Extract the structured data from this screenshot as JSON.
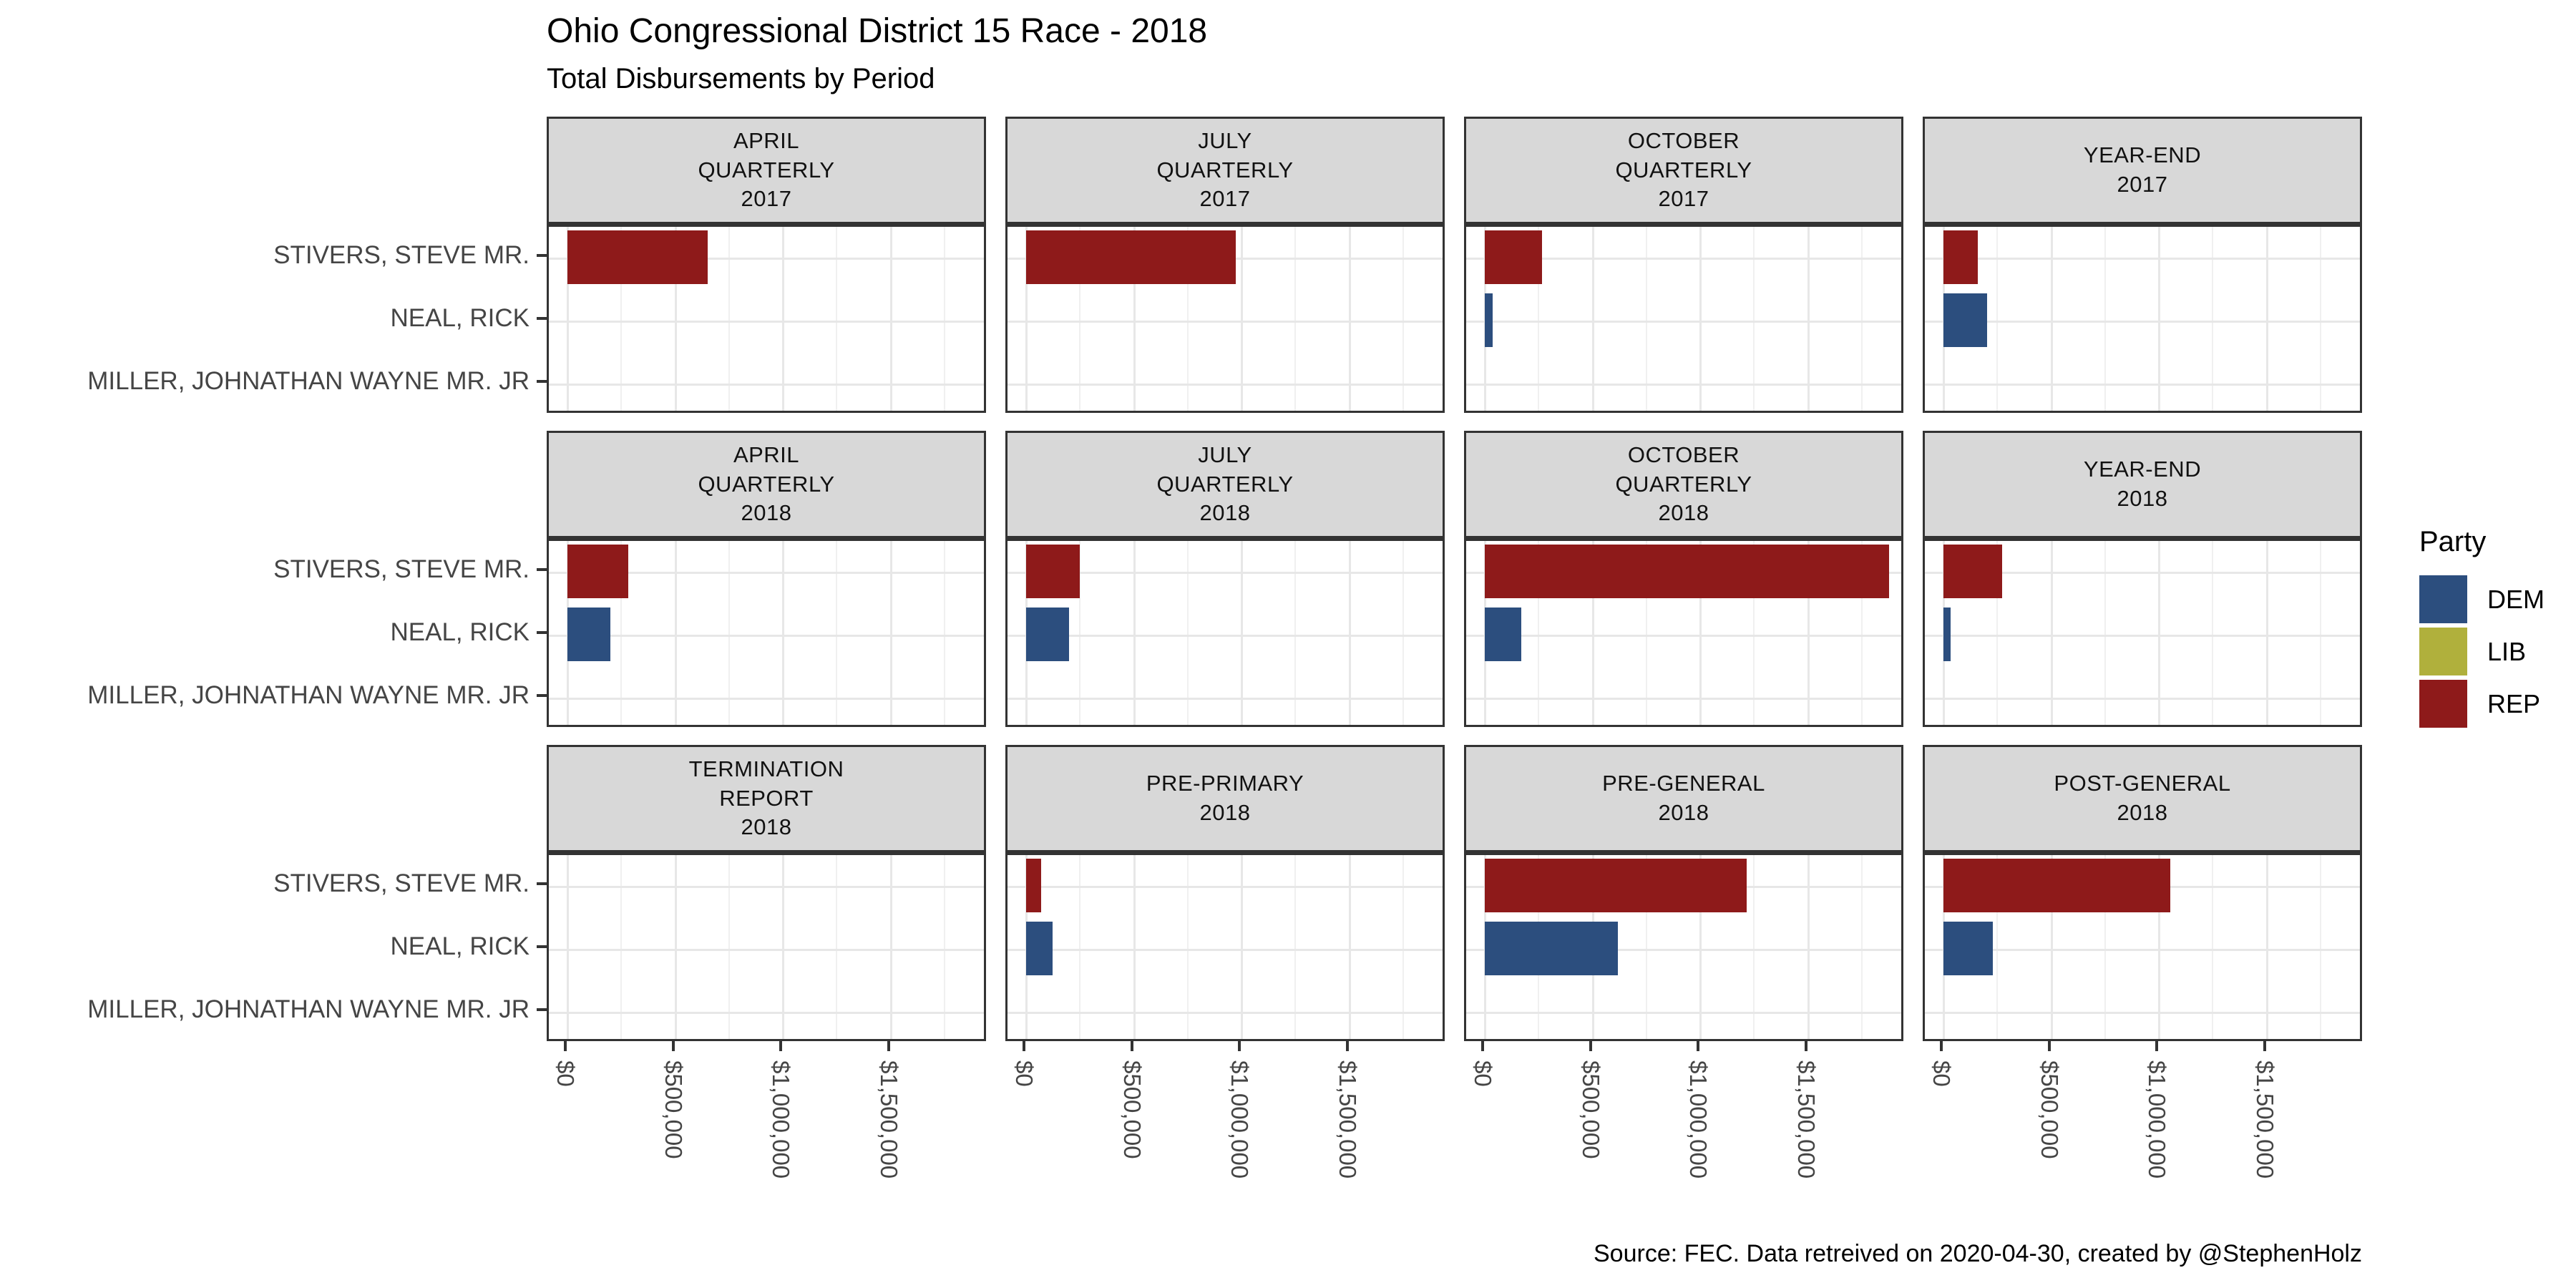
{
  "title": "Ohio Congressional District 15 Race - 2018",
  "subtitle": "Total Disbursements by Period",
  "caption": "Source: FEC. Data retreived on 2020-04-30, created by @StephenHolz",
  "legend": {
    "title": "Party",
    "entries": [
      {
        "label": "DEM",
        "color": "#2C4E7E"
      },
      {
        "label": "LIB",
        "color": "#B0B03C"
      },
      {
        "label": "REP",
        "color": "#8E1A1A"
      }
    ]
  },
  "colors": {
    "REP": "#8E1A1A",
    "DEM": "#2C4E7E",
    "LIB": "#B0B03C",
    "strip_bg": "#D8D8D8",
    "panel_border": "#333333"
  },
  "chart_data": {
    "type": "bar",
    "orientation": "horizontal",
    "facet_grid": {
      "rows": 3,
      "cols": 4
    },
    "title": "Ohio Congressional District 15 Race - 2018",
    "subtitle": "Total Disbursements by Period",
    "xlabel": "",
    "ylabel": "",
    "x_ticks": {
      "labels": [
        "$0",
        "$500,000",
        "$1,000,000",
        "$1,500,000"
      ],
      "values": [
        0,
        500000,
        1000000,
        1500000
      ]
    },
    "x_minor_interval": 250000,
    "x_max": 1955000,
    "grid": true,
    "legend_position": "right",
    "candidates": [
      {
        "name": "STIVERS, STEVE MR.",
        "party": "REP"
      },
      {
        "name": "NEAL, RICK",
        "party": "DEM"
      },
      {
        "name": "MILLER, JOHNATHAN WAYNE MR. JR",
        "party": "LIB"
      }
    ],
    "facets": [
      {
        "label": "APRIL QUARTERLY 2017",
        "lines": [
          "APRIL",
          "QUARTERLY",
          "2017"
        ],
        "values": [
          652000,
          0,
          0
        ]
      },
      {
        "label": "JULY QUARTERLY 2017",
        "lines": [
          "JULY",
          "QUARTERLY",
          "2017"
        ],
        "values": [
          975000,
          0,
          0
        ]
      },
      {
        "label": "OCTOBER QUARTERLY 2017",
        "lines": [
          "OCTOBER",
          "QUARTERLY",
          "2017"
        ],
        "values": [
          267000,
          37000,
          0
        ]
      },
      {
        "label": "YEAR-END 2017",
        "lines": [
          "YEAR-END",
          "2017"
        ],
        "values": [
          160000,
          202000,
          0
        ]
      },
      {
        "label": "APRIL QUARTERLY 2018",
        "lines": [
          "APRIL",
          "QUARTERLY",
          "2018"
        ],
        "values": [
          283000,
          199000,
          0
        ]
      },
      {
        "label": "JULY QUARTERLY 2018",
        "lines": [
          "JULY",
          "QUARTERLY",
          "2018"
        ],
        "values": [
          248000,
          200000,
          0
        ]
      },
      {
        "label": "OCTOBER QUARTERLY 2018",
        "lines": [
          "OCTOBER",
          "QUARTERLY",
          "2018"
        ],
        "values": [
          1878000,
          171000,
          0
        ]
      },
      {
        "label": "YEAR-END 2018",
        "lines": [
          "YEAR-END",
          "2018"
        ],
        "values": [
          272000,
          33000,
          0
        ]
      },
      {
        "label": "TERMINATION REPORT 2018",
        "lines": [
          "TERMINATION",
          "REPORT",
          "2018"
        ],
        "values": [
          0,
          0,
          0
        ]
      },
      {
        "label": "PRE-PRIMARY 2018",
        "lines": [
          "PRE-PRIMARY",
          "2018"
        ],
        "values": [
          70000,
          124000,
          0
        ]
      },
      {
        "label": "PRE-GENERAL 2018",
        "lines": [
          "PRE-GENERAL",
          "2018"
        ],
        "values": [
          1215000,
          619000,
          0
        ]
      },
      {
        "label": "POST-GENERAL 2018",
        "lines": [
          "POST-GENERAL",
          "2018"
        ],
        "values": [
          1052000,
          229000,
          0
        ]
      }
    ]
  }
}
